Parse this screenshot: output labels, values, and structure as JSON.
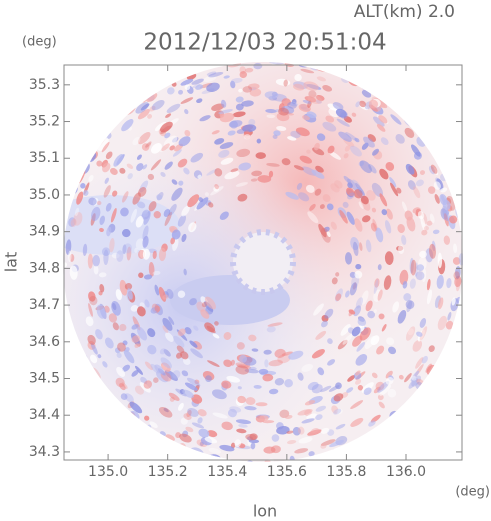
{
  "chart_data": {
    "type": "heatmap",
    "title": "2012/12/03 20:51:04",
    "altitude_label": "ALT(km) 2.0",
    "y_unit": "(deg)",
    "x_unit": "(deg)",
    "xlabel": "lon",
    "ylabel": "lat",
    "xlim": [
      134.852,
      136.188
    ],
    "ylim": [
      34.278,
      35.354
    ],
    "xticks": [
      {
        "value": 135,
        "label": "135.0"
      },
      135.2,
      135.4,
      135.6,
      135.8,
      {
        "value": 136,
        "label": "136.0"
      }
    ],
    "yticks": [
      34.3,
      34.4,
      34.5,
      34.6,
      34.7,
      34.8,
      34.9,
      {
        "value": 35,
        "label": "35.0"
      },
      35.1,
      35.2,
      35.3
    ]
  }
}
